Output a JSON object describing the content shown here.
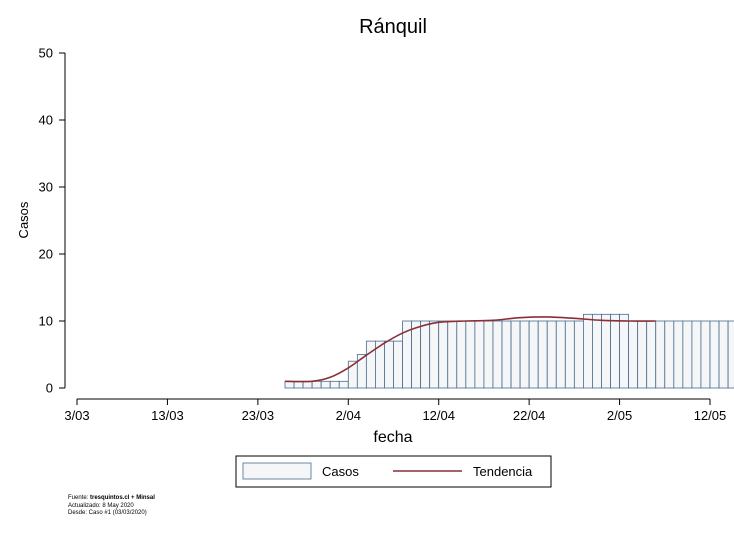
{
  "chart_data": {
    "type": "bar",
    "title": "Ránquil",
    "xlabel": "fecha",
    "ylabel": "Casos",
    "ylim": [
      0,
      50
    ],
    "yticks": [
      "0",
      "10",
      "20",
      "30",
      "40",
      "50"
    ],
    "xlim": [
      "2020-03-03",
      "2020-05-12"
    ],
    "xticks": [
      {
        "date": "2020-03-03",
        "label": "3/03"
      },
      {
        "date": "2020-03-13",
        "label": "13/03"
      },
      {
        "date": "2020-03-23",
        "label": "23/03"
      },
      {
        "date": "2020-04-02",
        "label": "2/04"
      },
      {
        "date": "2020-04-12",
        "label": "12/04"
      },
      {
        "date": "2020-04-22",
        "label": "22/04"
      },
      {
        "date": "2020-05-02",
        "label": "2/05"
      },
      {
        "date": "2020-05-12",
        "label": "12/05"
      }
    ],
    "grid": false,
    "legend_position": "bottom",
    "series": [
      {
        "name": "Casos",
        "kind": "bar",
        "color": "#f5f6f8",
        "edge_color": "#4a6a8c",
        "start_date": "2020-03-26",
        "values": [
          1,
          1,
          1,
          1,
          1,
          1,
          1,
          4,
          5,
          7,
          7,
          7,
          7,
          10,
          10,
          10,
          10,
          10,
          10,
          10,
          10,
          10,
          10,
          10,
          10,
          10,
          10,
          10,
          10,
          10,
          10,
          10,
          10,
          11,
          11,
          11,
          11,
          11,
          10,
          10,
          10,
          10,
          10,
          10,
          10,
          10,
          10,
          10,
          10,
          10,
          10
        ]
      },
      {
        "name": "Tendencia",
        "kind": "line",
        "color": "#8b2e35",
        "points": [
          [
            "2020-03-26",
            1
          ],
          [
            "2020-03-29",
            1
          ],
          [
            "2020-03-31",
            1.6
          ],
          [
            "2020-04-02",
            3
          ],
          [
            "2020-04-04",
            4.9
          ],
          [
            "2020-04-06",
            6.7
          ],
          [
            "2020-04-08",
            8.2
          ],
          [
            "2020-04-10",
            9.2
          ],
          [
            "2020-04-12",
            9.8
          ],
          [
            "2020-04-15",
            10
          ],
          [
            "2020-04-18",
            10.1
          ],
          [
            "2020-04-21",
            10.5
          ],
          [
            "2020-04-24",
            10.6
          ],
          [
            "2020-04-27",
            10.4
          ],
          [
            "2020-04-30",
            10.1
          ],
          [
            "2020-05-03",
            10
          ],
          [
            "2020-05-06",
            10
          ]
        ]
      }
    ]
  },
  "source": {
    "line1_prefix": "Fuente: ",
    "line1_bold": "tresquintos.cl + Minsal",
    "line2": "Actualizado: 8 May 2020",
    "line3": "Desde: Caso #1  (03/03/2020)"
  }
}
